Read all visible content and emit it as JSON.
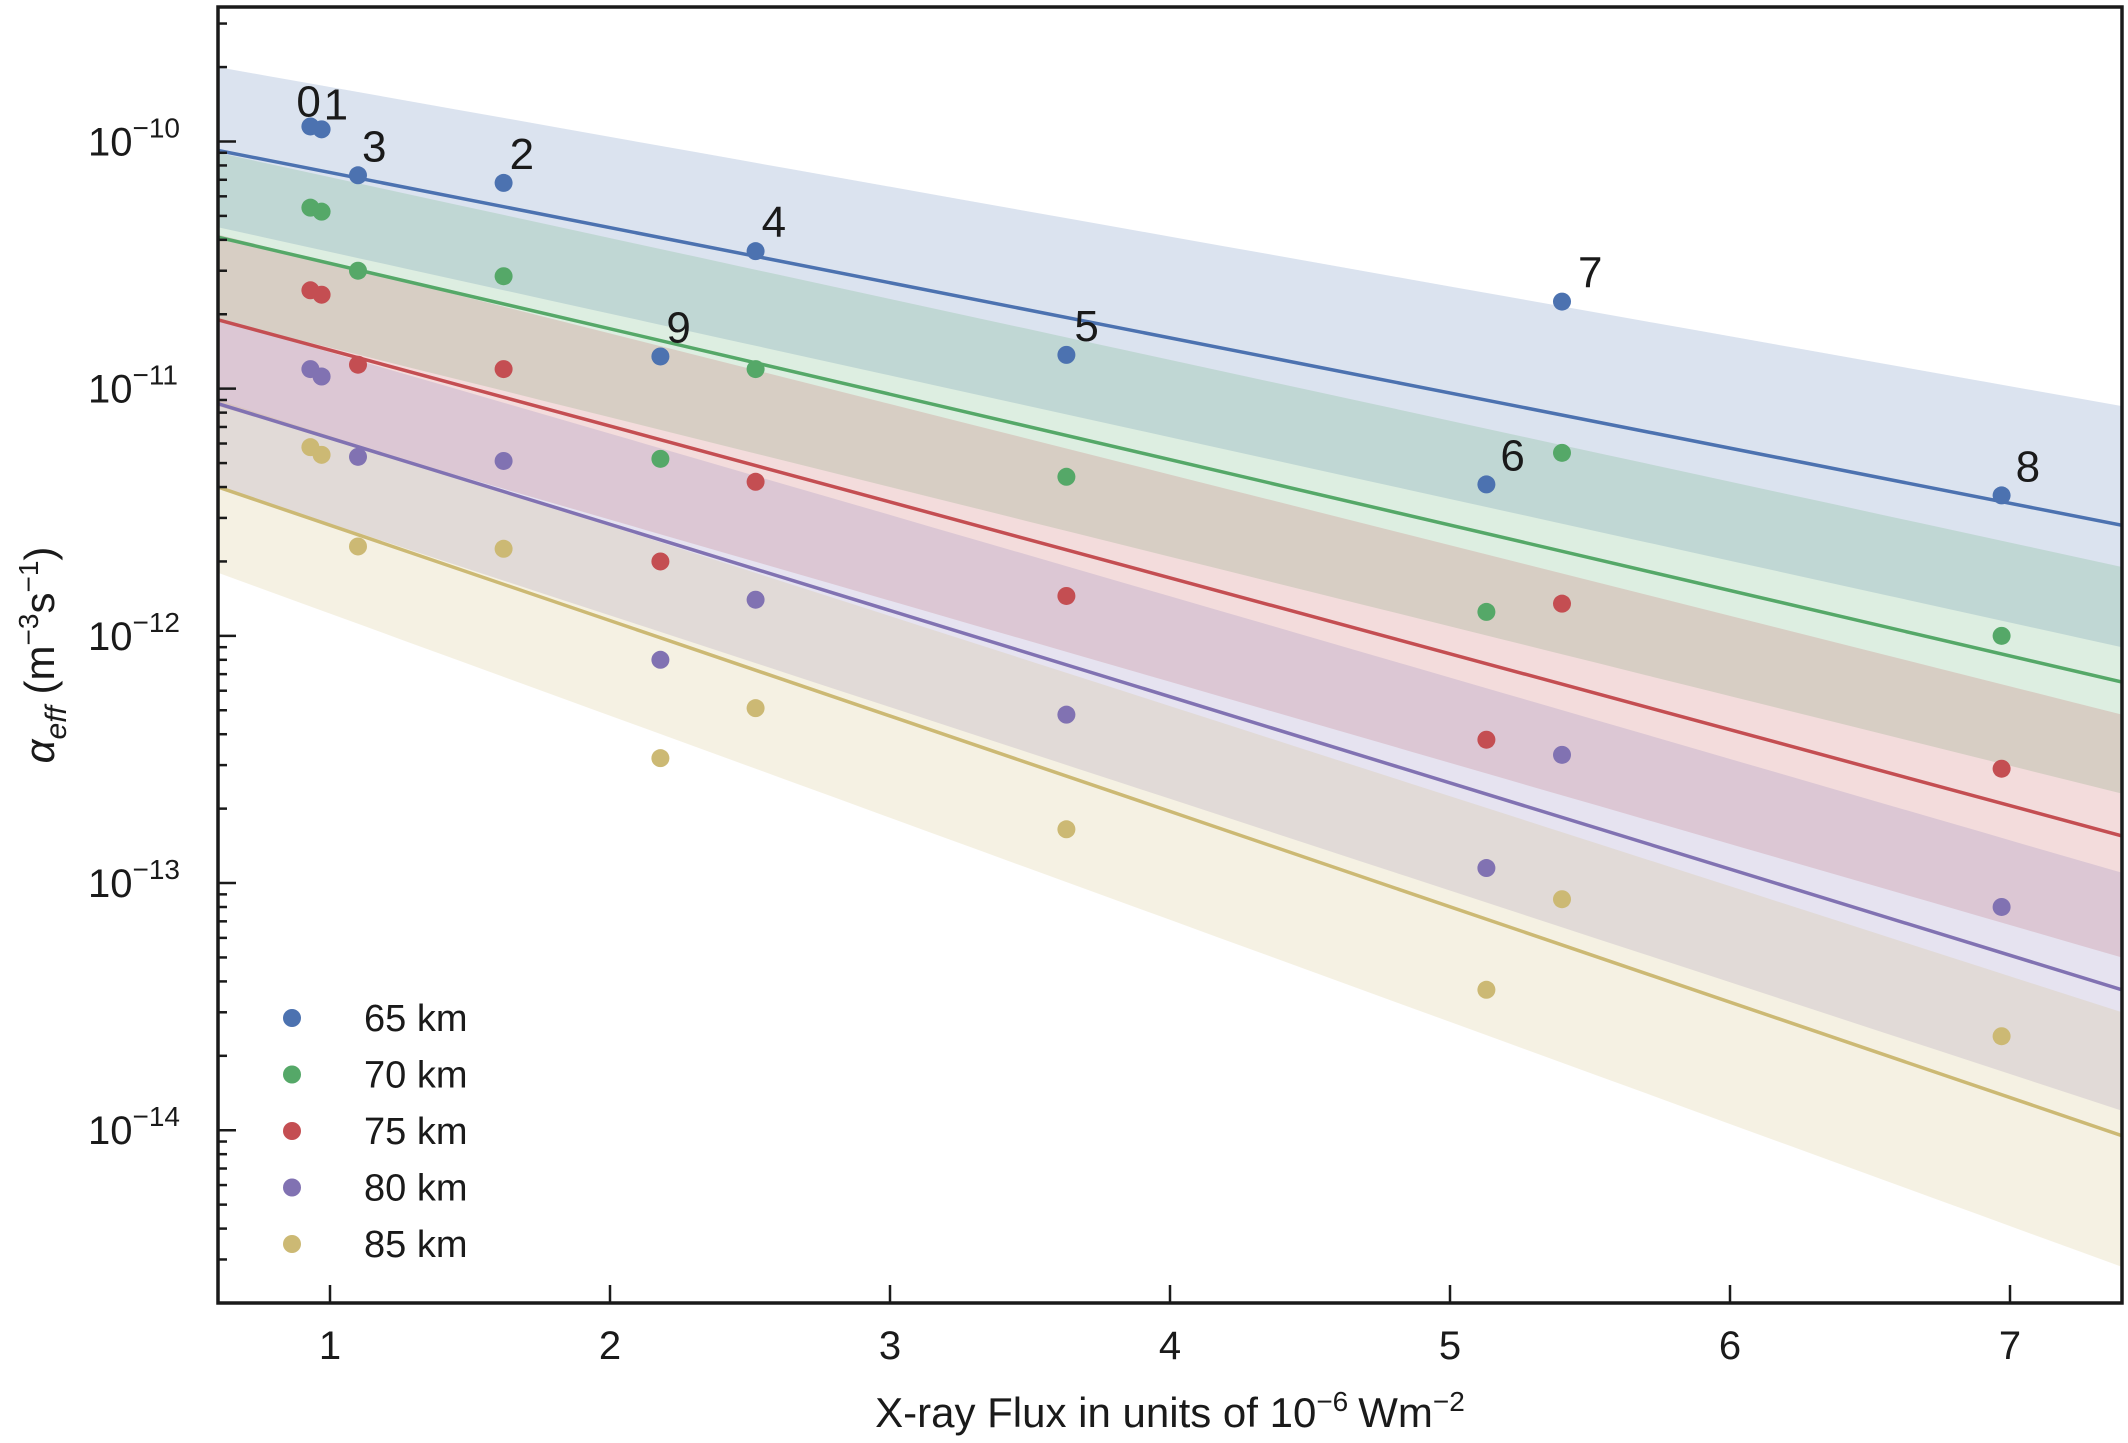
{
  "chart_data": {
    "type": "scatter",
    "xlabel": "X-ray Flux in units of 10",
    "xlabel_exponent": "−6",
    "xlabel_unit": "Wm",
    "xlabel_unit_exponent": "−2",
    "ylabel_symbol": "α",
    "ylabel_subscript": "eff",
    "ylabel_unit_open": " (m",
    "ylabel_exp1": "−3",
    "ylabel_s": "s",
    "ylabel_exp2": "−1",
    "ylabel_close": ")",
    "xlim": [
      0.6,
      7.4
    ],
    "ylim": [
      2e-15,
      3.5e-10
    ],
    "yscale": "log",
    "x_ticks": [
      1,
      2,
      3,
      4,
      5,
      6,
      7
    ],
    "x_tick_labels": [
      "1",
      "2",
      "3",
      "4",
      "5",
      "6",
      "7"
    ],
    "y_ticks": [
      1e-10,
      1e-11,
      1e-12,
      1e-13,
      1e-14
    ],
    "y_tick_labels": [
      {
        "base": "10",
        "exp": "−10"
      },
      {
        "base": "10",
        "exp": "−11"
      },
      {
        "base": "10",
        "exp": "−12"
      },
      {
        "base": "10",
        "exp": "−13"
      },
      {
        "base": "10",
        "exp": "−14"
      }
    ],
    "grid": false,
    "legend_position": "bottom-left",
    "x": [
      0.93,
      0.97,
      1.1,
      1.62,
      2.18,
      2.52,
      3.63,
      5.13,
      5.4,
      6.97
    ],
    "point_labels": [
      "0",
      "1",
      "3",
      "2",
      "9",
      "4",
      "5",
      "6",
      "7",
      "8"
    ],
    "series": [
      {
        "name": "65 km",
        "color": "#4c72b0",
        "values": [
          1.15e-10,
          1.12e-10,
          7.3e-11,
          6.8e-11,
          1.35e-11,
          3.6e-11,
          1.37e-11,
          4.1e-12,
          2.25e-11,
          3.7e-12
        ],
        "fit": [
          9.2e-11,
          2.8e-12
        ],
        "band_upper": [
          2e-10,
          8.5e-12
        ],
        "band_lower": [
          4.5e-11,
          9e-13
        ]
      },
      {
        "name": "70 km",
        "color": "#55a868",
        "values": [
          5.4e-11,
          5.2e-11,
          3e-11,
          2.85e-11,
          5.2e-12,
          1.2e-11,
          4.4e-12,
          1.25e-12,
          5.5e-12,
          1e-12
        ],
        "fit": [
          4.1e-11,
          6.5e-13
        ],
        "band_upper": [
          9e-11,
          1.9e-12
        ],
        "band_lower": [
          1.9e-11,
          2.3e-13
        ]
      },
      {
        "name": "75 km",
        "color": "#c44e52",
        "values": [
          2.5e-11,
          2.4e-11,
          1.25e-11,
          1.2e-11,
          2e-12,
          4.2e-12,
          1.45e-12,
          3.8e-13,
          1.35e-12,
          2.9e-13
        ],
        "fit": [
          1.9e-11,
          1.55e-13
        ],
        "band_upper": [
          4.2e-11,
          4.8e-13
        ],
        "band_lower": [
          8.5e-12,
          5e-14
        ]
      },
      {
        "name": "80 km",
        "color": "#8172b2",
        "values": [
          1.2e-11,
          1.12e-11,
          5.3e-12,
          5.1e-12,
          8e-13,
          1.4e-12,
          4.8e-13,
          1.15e-13,
          3.3e-13,
          8e-14
        ],
        "fit": [
          8.7e-12,
          3.7e-14
        ],
        "band_upper": [
          1.9e-11,
          1.1e-13
        ],
        "band_lower": [
          4e-12,
          1.2e-14
        ]
      },
      {
        "name": "85 km",
        "color": "#ccb974",
        "values": [
          5.8e-12,
          5.4e-12,
          2.3e-12,
          2.25e-12,
          3.2e-13,
          5.1e-13,
          1.65e-13,
          3.7e-14,
          8.6e-14,
          2.4e-14
        ],
        "fit": [
          4e-12,
          9.5e-15
        ],
        "band_upper": [
          9e-12,
          3e-14
        ],
        "band_lower": [
          1.8e-12,
          2.8e-15
        ]
      }
    ]
  }
}
